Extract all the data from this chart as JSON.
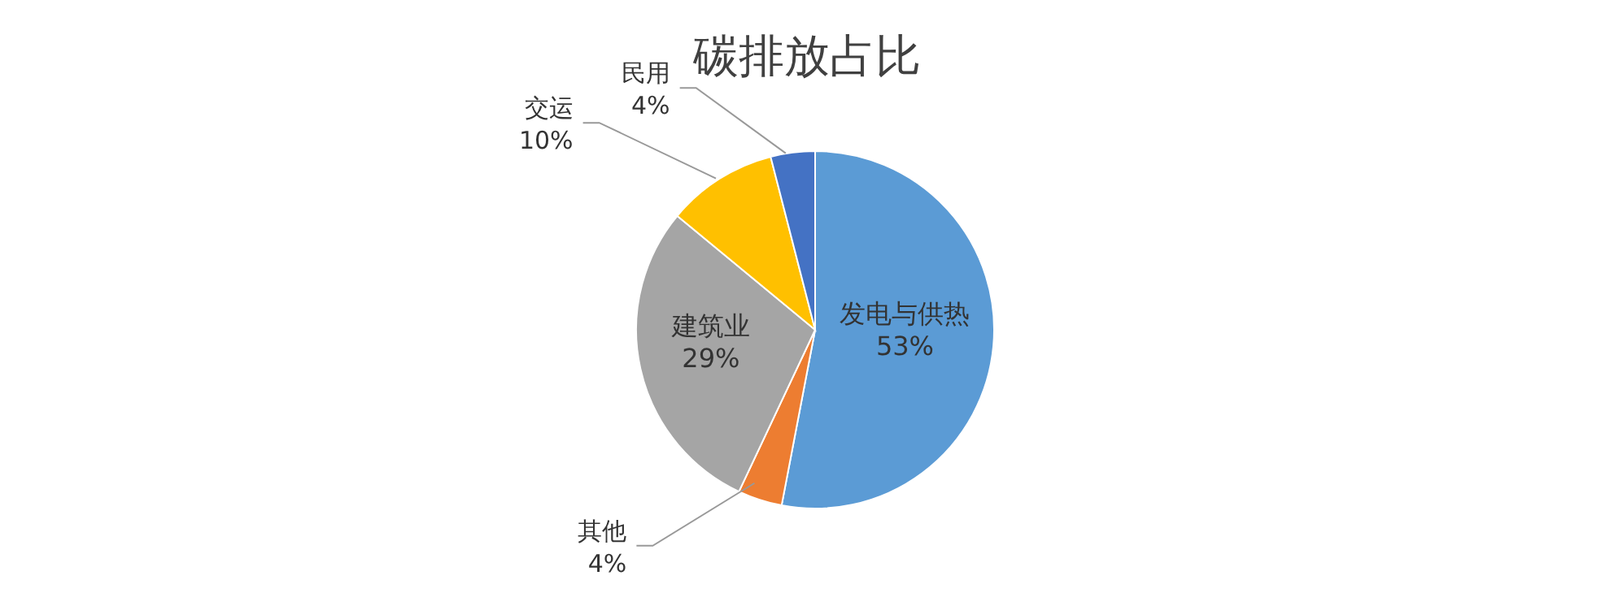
{
  "chart_data": {
    "type": "pie",
    "title": "碳排放占比",
    "categories": [
      "发电与供热",
      "其他",
      "建筑业",
      "交运",
      "民用"
    ],
    "values": [
      53,
      4,
      29,
      10,
      4
    ],
    "value_labels": [
      "53%",
      "4%",
      "29%",
      "10%",
      "4%"
    ],
    "colors": [
      "#5b9bd5",
      "#ed7d31",
      "#a5a5a5",
      "#ffc000",
      "#4472c4"
    ],
    "legend": false
  }
}
